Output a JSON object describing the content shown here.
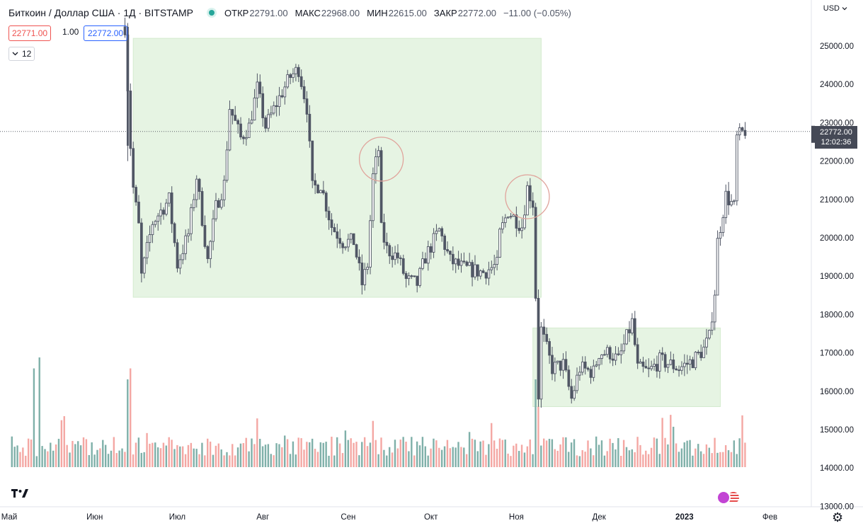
{
  "header": {
    "symbol": "Биткоин / Доллар США · 1Д · BITSTAMP",
    "open_label": "ОТКР",
    "open": "22791.00",
    "high_label": "МАКС",
    "high": "22968.00",
    "low_label": "МИН",
    "low": "22615.00",
    "close_label": "ЗАКР",
    "close": "22772.00",
    "change": "−11.00 (−0.05%)"
  },
  "trade": {
    "bid": "22771.00",
    "spread": "1.00",
    "ask": "22772.00"
  },
  "indicator": {
    "label": "12",
    "icon": "chevron-down-icon"
  },
  "currency": "USD",
  "last_price": {
    "value": "22772.00",
    "countdown": "12:02:36"
  },
  "colors": {
    "up": "#26a69a",
    "down": "#ef5350",
    "box": "#e6f4e3",
    "circle": "#e0a39b",
    "candle": "#505665"
  },
  "chart_data": {
    "type": "candlestick",
    "title": "Биткоин / Доллар США · 1Д · BITSTAMP",
    "y_range": [
      13000,
      25600
    ],
    "y_ticks": [
      "25000.00",
      "24000.00",
      "23000.00",
      "22000.00",
      "21000.00",
      "20000.00",
      "19000.00",
      "18000.00",
      "17000.00",
      "16000.00",
      "15000.00",
      "14000.00",
      "13000.00"
    ],
    "x_labels": [
      "Май",
      "Июн",
      "Июл",
      "Авг",
      "Сен",
      "Окт",
      "Ноя",
      "Дек",
      "2023",
      "Фев"
    ],
    "x_range": [
      "2022-05-01",
      "2023-02-10"
    ],
    "x_tick_dates": [
      "2022-05-01",
      "2022-06-01",
      "2022-07-01",
      "2022-08-01",
      "2022-09-01",
      "2022-10-01",
      "2022-11-01",
      "2022-12-01",
      "2023-01-01",
      "2023-02-01"
    ],
    "anchors": [
      {
        "date": "2022-06-12",
        "price": 25500
      },
      {
        "date": "2022-06-14",
        "price": 22400
      },
      {
        "date": "2022-06-15",
        "price": 21300
      },
      {
        "date": "2022-06-17",
        "price": 20300
      },
      {
        "date": "2022-06-18",
        "price": 19000
      },
      {
        "date": "2022-06-22",
        "price": 20400
      },
      {
        "date": "2022-06-28",
        "price": 21000
      },
      {
        "date": "2022-07-01",
        "price": 19300
      },
      {
        "date": "2022-07-05",
        "price": 20100
      },
      {
        "date": "2022-07-08",
        "price": 21600
      },
      {
        "date": "2022-07-12",
        "price": 19400
      },
      {
        "date": "2022-07-15",
        "price": 20800
      },
      {
        "date": "2022-07-18",
        "price": 21400
      },
      {
        "date": "2022-07-20",
        "price": 23400
      },
      {
        "date": "2022-07-24",
        "price": 22600
      },
      {
        "date": "2022-07-27",
        "price": 22900
      },
      {
        "date": "2022-07-30",
        "price": 23900
      },
      {
        "date": "2022-08-02",
        "price": 22900
      },
      {
        "date": "2022-08-08",
        "price": 23800
      },
      {
        "date": "2022-08-11",
        "price": 24200
      },
      {
        "date": "2022-08-14",
        "price": 24400
      },
      {
        "date": "2022-08-17",
        "price": 23400
      },
      {
        "date": "2022-08-19",
        "price": 21300
      },
      {
        "date": "2022-08-22",
        "price": 21400
      },
      {
        "date": "2022-08-26",
        "price": 20300
      },
      {
        "date": "2022-08-30",
        "price": 19900
      },
      {
        "date": "2022-09-03",
        "price": 19900
      },
      {
        "date": "2022-09-06",
        "price": 18800
      },
      {
        "date": "2022-09-08",
        "price": 19300
      },
      {
        "date": "2022-09-10",
        "price": 21600
      },
      {
        "date": "2022-09-12",
        "price": 22300
      },
      {
        "date": "2022-09-13",
        "price": 20200
      },
      {
        "date": "2022-09-15",
        "price": 19700
      },
      {
        "date": "2022-09-19",
        "price": 19500
      },
      {
        "date": "2022-09-22",
        "price": 18900
      },
      {
        "date": "2022-09-26",
        "price": 18800
      },
      {
        "date": "2022-09-29",
        "price": 19500
      },
      {
        "date": "2022-10-04",
        "price": 20200
      },
      {
        "date": "2022-10-08",
        "price": 19400
      },
      {
        "date": "2022-10-13",
        "price": 19200
      },
      {
        "date": "2022-10-20",
        "price": 19100
      },
      {
        "date": "2022-10-25",
        "price": 19300
      },
      {
        "date": "2022-10-26",
        "price": 20100
      },
      {
        "date": "2022-10-29",
        "price": 20700
      },
      {
        "date": "2022-11-03",
        "price": 20300
      },
      {
        "date": "2022-11-05",
        "price": 21300
      },
      {
        "date": "2022-11-07",
        "price": 20900
      },
      {
        "date": "2022-11-08",
        "price": 18500
      },
      {
        "date": "2022-11-09",
        "price": 15900
      },
      {
        "date": "2022-11-10",
        "price": 17600
      },
      {
        "date": "2022-11-14",
        "price": 16600
      },
      {
        "date": "2022-11-18",
        "price": 16700
      },
      {
        "date": "2022-11-21",
        "price": 15800
      },
      {
        "date": "2022-11-24",
        "price": 16600
      },
      {
        "date": "2022-11-29",
        "price": 16500
      },
      {
        "date": "2022-12-01",
        "price": 17000
      },
      {
        "date": "2022-12-05",
        "price": 17000
      },
      {
        "date": "2022-12-08",
        "price": 16800
      },
      {
        "date": "2022-12-13",
        "price": 17800
      },
      {
        "date": "2022-12-15",
        "price": 16600
      },
      {
        "date": "2022-12-19",
        "price": 16500
      },
      {
        "date": "2022-12-23",
        "price": 16800
      },
      {
        "date": "2022-12-27",
        "price": 16700
      },
      {
        "date": "2022-12-30",
        "price": 16600
      },
      {
        "date": "2023-01-04",
        "price": 16800
      },
      {
        "date": "2023-01-08",
        "price": 17100
      },
      {
        "date": "2023-01-10",
        "price": 17400
      },
      {
        "date": "2023-01-12",
        "price": 18600
      },
      {
        "date": "2023-01-13",
        "price": 19900
      },
      {
        "date": "2023-01-16",
        "price": 21100
      },
      {
        "date": "2023-01-19",
        "price": 20800
      },
      {
        "date": "2023-01-20",
        "price": 22600
      },
      {
        "date": "2023-01-23",
        "price": 22800
      }
    ],
    "volume_spikes": [
      {
        "date": "2022-05-10",
        "level": 0.9
      },
      {
        "date": "2022-05-12",
        "level": 1.0
      },
      {
        "date": "2022-06-13",
        "level": 0.8
      },
      {
        "date": "2022-06-14",
        "level": 0.9
      },
      {
        "date": "2022-11-08",
        "level": 0.8
      },
      {
        "date": "2022-11-09",
        "level": 0.55
      }
    ],
    "highlight_boxes": [
      {
        "from": "2022-06-15",
        "to": "2022-11-10",
        "top": 25200,
        "bottom": 18450
      },
      {
        "from": "2022-11-07",
        "to": "2023-01-14",
        "top": 17650,
        "bottom": 15600
      }
    ],
    "circles": [
      {
        "date": "2022-09-13",
        "price": 22050
      },
      {
        "date": "2022-11-05",
        "price": 21070
      }
    ],
    "last_price": 22772
  }
}
